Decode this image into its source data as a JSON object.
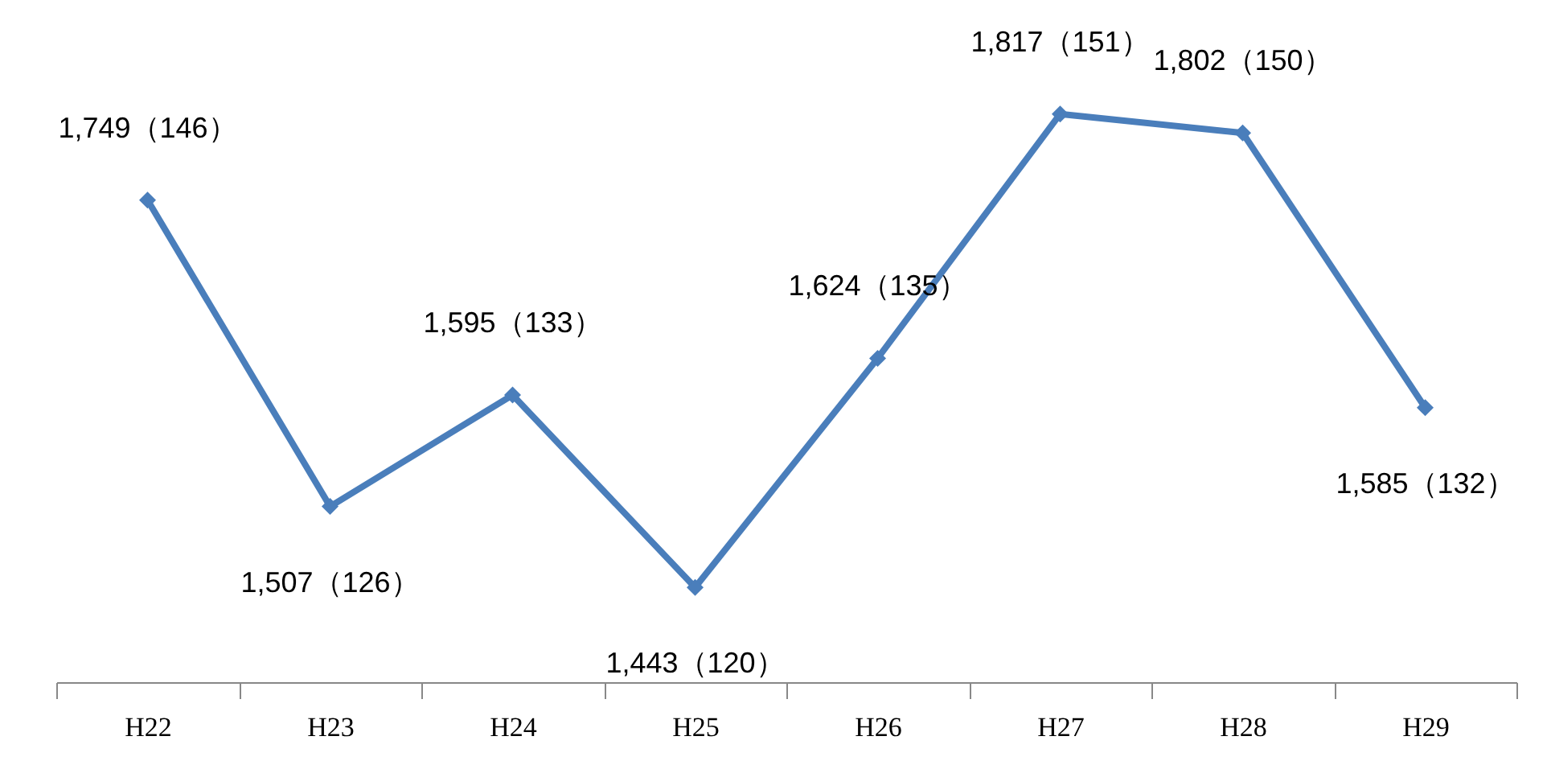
{
  "chart_data": {
    "type": "line",
    "categories": [
      "H22",
      "H23",
      "H24",
      "H25",
      "H26",
      "H27",
      "H28",
      "H29"
    ],
    "series": [
      {
        "color": "#4a7ebb",
        "values": [
          1749,
          1507,
          1595,
          1443,
          1624,
          1817,
          1802,
          1585
        ],
        "value_labels": [
          "1,749（146）",
          "1,507（126）",
          "1,595（133）",
          "1,443（120）",
          "1,624（135）",
          "1,817（151）",
          "1,802（150）",
          "1,585（132）"
        ]
      }
    ],
    "marker": "diamond",
    "line_style": "solid",
    "grid": false
  }
}
